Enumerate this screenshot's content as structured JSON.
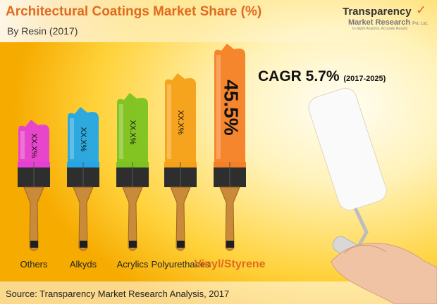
{
  "title": "Architectural Coatings Market Share (%)",
  "subtitle": "By Resin (2017)",
  "logo": {
    "brand_line1": "Transparency",
    "brand_line2": "Market Research",
    "brand_suffix": "Pvt. Ltd.",
    "tagline": "In-depth Analysis, Accurate Results"
  },
  "cagr": {
    "label": "CAGR 5.7%",
    "period": "(2017-2025)"
  },
  "source": "Source: Transparency Market Research Analysis, 2017",
  "colors": {
    "title": "#e06b1f",
    "wall_light": "#fff4c2",
    "wall_deep": "#f5a800"
  },
  "chart_data": {
    "type": "bar",
    "categories": [
      "Others",
      "Alkyds",
      "Acrylics",
      "Polyurethanes",
      "Vinyl/Styrene"
    ],
    "value_labels": [
      "XX.X%",
      "XX.X%",
      "XX.X%",
      "XX.X%",
      "45.5%"
    ],
    "colors": [
      "#e63fd6",
      "#22a6e8",
      "#7cc321",
      "#f5a018",
      "#f57f26"
    ],
    "highlight_index": 4
  }
}
